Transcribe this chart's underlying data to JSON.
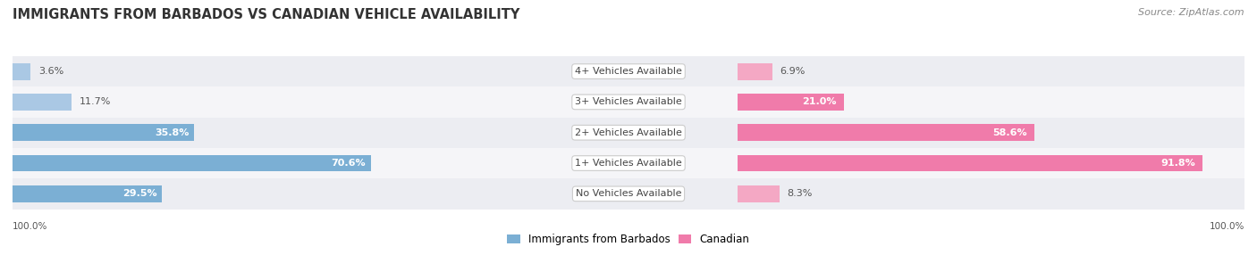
{
  "title": "IMMIGRANTS FROM BARBADOS VS CANADIAN VEHICLE AVAILABILITY",
  "source": "Source: ZipAtlas.com",
  "categories": [
    "No Vehicles Available",
    "1+ Vehicles Available",
    "2+ Vehicles Available",
    "3+ Vehicles Available",
    "4+ Vehicles Available"
  ],
  "barbados_values": [
    29.5,
    70.6,
    35.8,
    11.7,
    3.6
  ],
  "canadian_values": [
    8.3,
    91.8,
    58.6,
    21.0,
    6.9
  ],
  "barbados_color": "#7bafd4",
  "canadian_color": "#f07baa",
  "barbados_color_light": "#aac8e4",
  "canadian_color_light": "#f4a8c4",
  "row_bg_even": "#ecedf2",
  "row_bg_odd": "#f5f5f8",
  "title_fontsize": 10.5,
  "source_fontsize": 8,
  "label_fontsize": 8,
  "value_fontsize": 8,
  "legend_fontsize": 8.5,
  "axis_label_fontsize": 7.5,
  "max_value": 100.0,
  "figure_bg": "#ffffff",
  "label_box_color": "#ffffff",
  "label_text_color": "#444444"
}
